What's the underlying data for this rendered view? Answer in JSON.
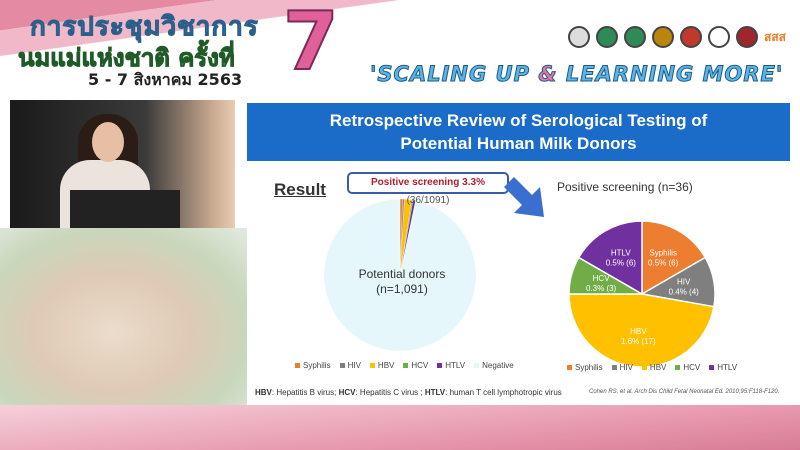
{
  "banner": {
    "title_line1": "การประชุมวิชาการ",
    "title_line2": "นมแม่แห่งชาติ ครั้งที่",
    "edition": "7",
    "dates": "5 - 7 สิงหาคม 2563",
    "slogan_part1": "'SCALING UP ",
    "slogan_amp": "&",
    "slogan_part2": " LEARNING MORE'",
    "logo_text": "สสส"
  },
  "slide": {
    "title_line1": "Retrospective Review of Serological Testing of",
    "title_line2": "Potential Human Milk Donors",
    "result_label": "Result",
    "callout_bold": "Positive screening 3.3%",
    "callout_rest": " (36/1091)",
    "footnote": [
      {
        "abbr": "HBV",
        "text": ": Hepatitis B virus; "
      },
      {
        "abbr": "HCV",
        "text": ": Hepatitis C virus ; "
      },
      {
        "abbr": "HTLV",
        "text": ": human T cell lymphotropic virus"
      }
    ],
    "citation": "Cohen RS, et al. Arch Dis Child Fetal Neonatal Ed. 2010;95:F118-F120."
  },
  "chart_data": [
    {
      "type": "pie",
      "center_label_line1": "Potential donors",
      "center_label_line2": "(n=1,091)",
      "categories": [
        "Syphilis",
        "HIV",
        "HBV",
        "HCV",
        "HTLV",
        "Negative"
      ],
      "values": [
        6,
        4,
        17,
        3,
        6,
        1055
      ],
      "colors": [
        "#ed7d31",
        "#7f7f7f",
        "#ffc000",
        "#70ad47",
        "#7030a0",
        "#e6f7fc"
      ],
      "legend": "bottom"
    },
    {
      "type": "pie",
      "title": "Positive screening (n=36)",
      "categories": [
        "Syphilis",
        "HIV",
        "HBV",
        "HCV",
        "HTLV"
      ],
      "values": [
        6,
        4,
        17,
        3,
        6
      ],
      "data_labels": [
        "0.5% (6)",
        "0.4% (4)",
        "1.6% (17)",
        "0.3% (3)",
        "0.5% (6)"
      ],
      "colors": [
        "#ed7d31",
        "#7f7f7f",
        "#ffc000",
        "#70ad47",
        "#7030a0"
      ],
      "legend": "bottom"
    }
  ]
}
